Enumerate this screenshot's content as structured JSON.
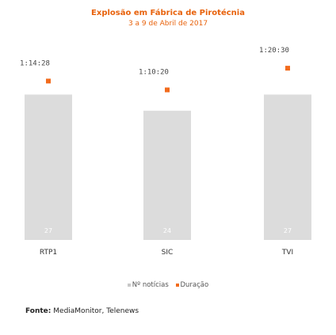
{
  "chart_data": {
    "type": "bar",
    "title": "Explosão em Fábrica de Pirotécnia",
    "subtitle": "3 a 9 de Abril de 2017",
    "categories": [
      "RTP1",
      "SIC",
      "TVI"
    ],
    "series": [
      {
        "name": "Nº notícias",
        "type": "bar",
        "values": [
          27,
          24,
          27
        ],
        "color": "#dcdcdc"
      },
      {
        "name": "Duração",
        "type": "marker",
        "values": [
          4468,
          4220,
          4830
        ],
        "labels": [
          "1:14:28",
          "1:10:20",
          "1:20:30"
        ],
        "color": "#f26b1d"
      }
    ],
    "ylim_bars": [
      0,
      35
    ],
    "ylim_duration_seconds": [
      0,
      5300
    ],
    "legend_position": "bottom",
    "grid": false
  },
  "source": {
    "label": "Fonte:",
    "text": "MediaMonitor, Telenews"
  }
}
